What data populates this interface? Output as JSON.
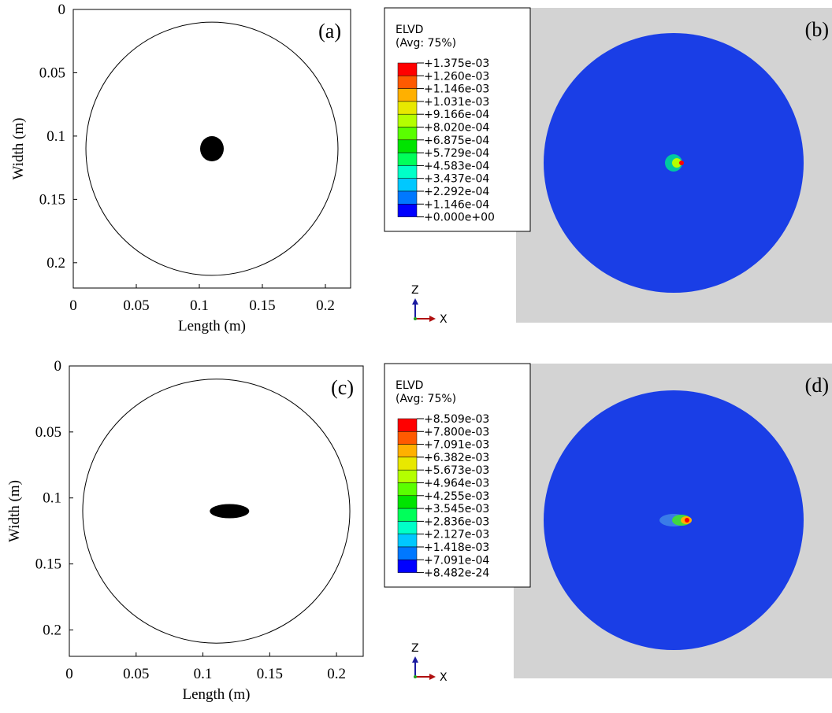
{
  "panels": [
    {
      "label": "(a)",
      "x_label": "Length (m)",
      "y_label": "Width (m)",
      "xlim": [
        0,
        0.22
      ],
      "ylim": [
        0,
        0.22
      ],
      "xticks": [
        0,
        0.05,
        0.1,
        0.15,
        0.2
      ],
      "yticks": [
        0,
        0.05,
        0.1,
        0.15,
        0.2
      ]
    },
    {
      "label": "(b)"
    },
    {
      "label": "(c)",
      "x_label": "Length (m)",
      "y_label": "Width (m)",
      "xlim": [
        0,
        0.22
      ],
      "ylim": [
        0,
        0.22
      ],
      "xticks": [
        0,
        0.05,
        0.1,
        0.15,
        0.2
      ],
      "yticks": [
        0,
        0.05,
        0.1,
        0.15,
        0.2
      ]
    },
    {
      "label": "(d)"
    }
  ],
  "legends": [
    {
      "title": "ELVD",
      "subtitle": "(Avg: 75%)",
      "levels": [
        "+1.375e-03",
        "+1.260e-03",
        "+1.146e-03",
        "+1.031e-03",
        "+9.166e-04",
        "+8.020e-04",
        "+6.875e-04",
        "+5.729e-04",
        "+4.583e-04",
        "+3.437e-04",
        "+2.292e-04",
        "+1.146e-04",
        "+0.000e+00"
      ],
      "colors": [
        "#ff0000",
        "#ff5a00",
        "#ffb000",
        "#e8e800",
        "#b4ff00",
        "#5aff00",
        "#00e400",
        "#00ff5a",
        "#00ffc8",
        "#00c8ff",
        "#0078ff",
        "#0000ff"
      ]
    },
    {
      "title": "ELVD",
      "subtitle": "(Avg: 75%)",
      "levels": [
        "+8.509e-03",
        "+7.800e-03",
        "+7.091e-03",
        "+6.382e-03",
        "+5.673e-03",
        "+4.964e-03",
        "+4.255e-03",
        "+3.545e-03",
        "+2.836e-03",
        "+2.127e-03",
        "+1.418e-03",
        "+7.091e-04",
        "+8.482e-24"
      ],
      "colors": [
        "#ff0000",
        "#ff5a00",
        "#ffb000",
        "#e8e800",
        "#b4ff00",
        "#5aff00",
        "#00e400",
        "#00ff5a",
        "#00ffc8",
        "#00c8ff",
        "#0078ff",
        "#0000ff"
      ]
    }
  ],
  "triad": {
    "z": "Z",
    "x": "X"
  }
}
